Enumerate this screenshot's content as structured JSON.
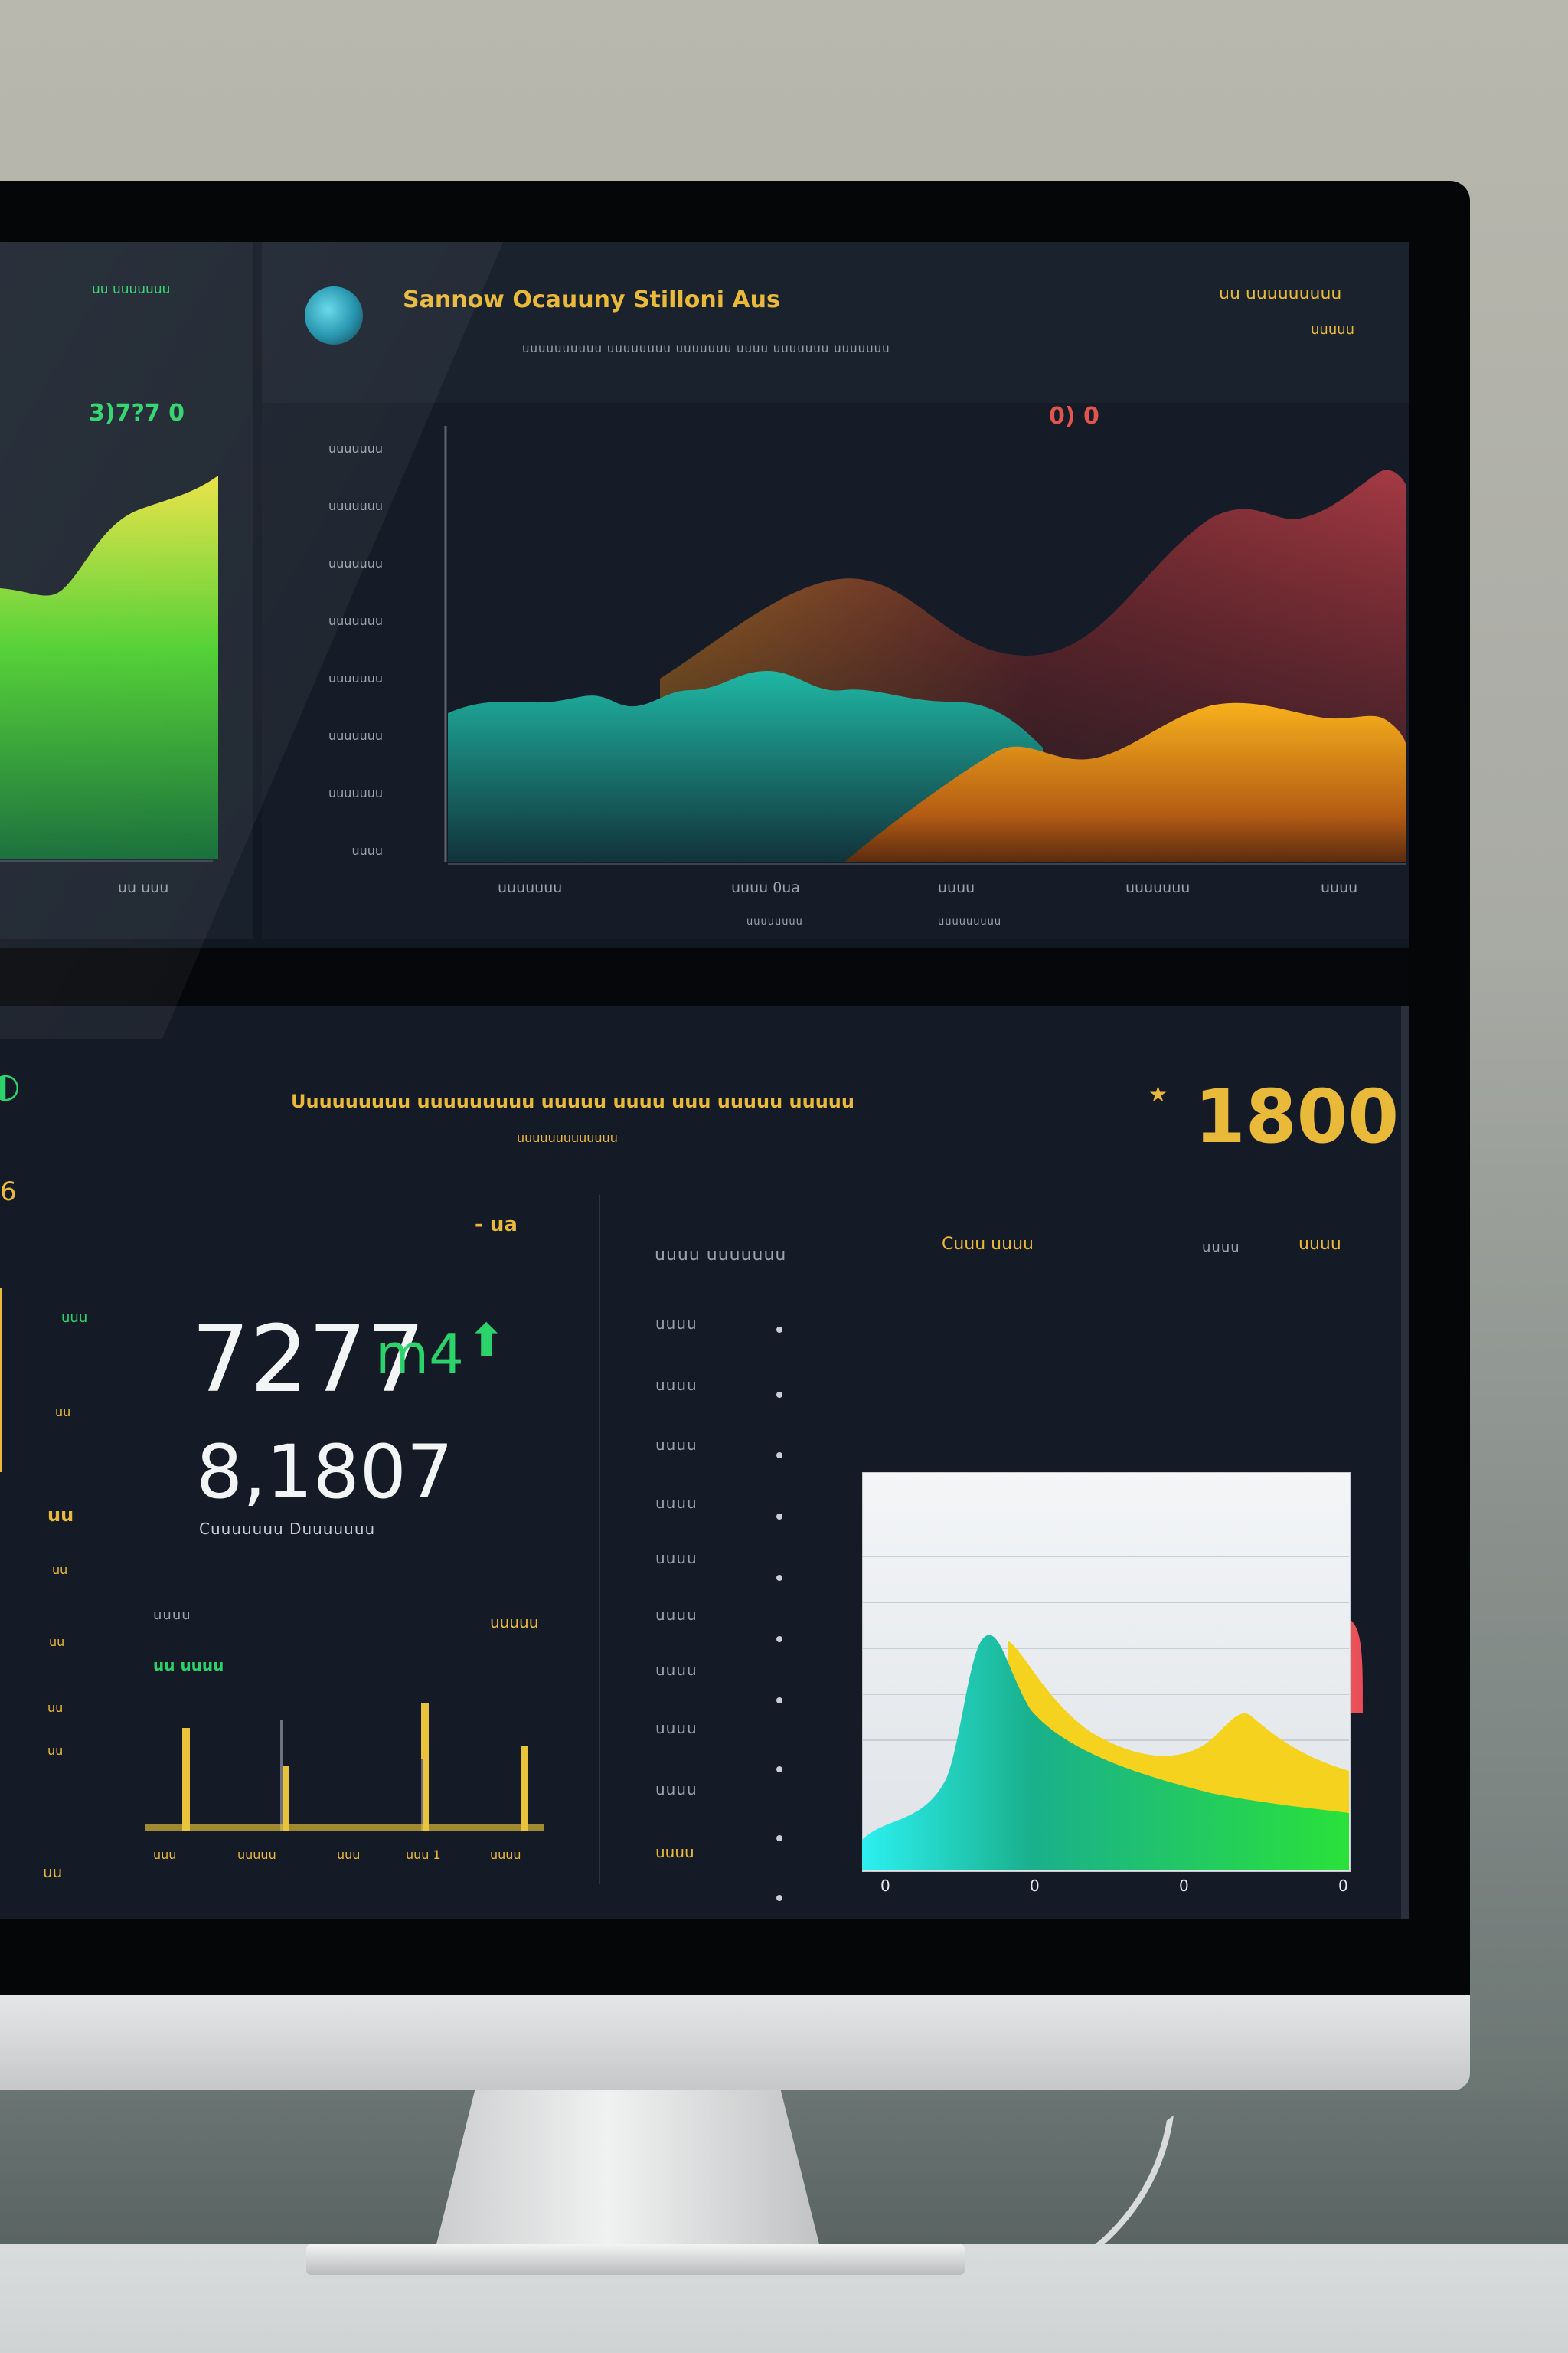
{
  "colors": {
    "screen_bg": "#121822",
    "accent_yellow": "#e9b93a",
    "accent_green": "#2bd36a",
    "accent_red": "#e0564f",
    "accent_teal": "#1fb7a4",
    "accent_orange": "#f19a1f"
  },
  "header": {
    "logo_icon": "circle-logo-icon",
    "title": "Sannow Ocauuny Stilloni Aus",
    "subtitle": "uuuuuuuuuu uuuuuuuu uuuuuuu uuuu uuuuuuu uuuuuuu",
    "right_label": "uu uuuuuuuuu",
    "right_sublabel": "uuuuu"
  },
  "left_panel": {
    "title": "uu uuuuuuu",
    "metric": "3)7?7 0",
    "x_label": "uu uuu"
  },
  "area_chart": {
    "corner_value": "0) 0",
    "x_labels": [
      "uuuuuuu",
      "uuuu 0ua",
      "uuuu",
      "uuuuuuu",
      "uuuu"
    ],
    "x_sublabels": [
      "uuuuuuuu",
      "uuuuuuuuu"
    ]
  },
  "bottom": {
    "headline": "Uuuuuuuuu uuuuuuuuu uuuuu uuuu uuu uuuuu uuuuu",
    "subheadline": "uuuuuuuuuuuuu",
    "big_value": "1800",
    "left_marker": "6",
    "kpi_label_right": "- ua",
    "kpi_primary": "7277",
    "kpi_primary_suffix": "m4",
    "kpi_secondary": "8,1807",
    "kpi_caption": "Cuuuuuuu Duuuuuuu",
    "kpi_small_left": "uuuu",
    "kpi_small_right": "uuuuu",
    "bars_label": "uu uuuu",
    "bars_x_labels": [
      "uuu",
      "uuuuu",
      "uuu",
      "uuu 1",
      "uuuu"
    ],
    "side_ticks": [
      "uuu",
      "uu",
      "uu",
      "uu",
      "uu",
      "uu",
      "uu"
    ],
    "side_bottom": "uu",
    "chart_header_left": "uuuu uuuuuuu",
    "chart_header_center": "Cuuu uuuu",
    "chart_header_right_dim": "uuuu",
    "chart_header_right": "uuuu",
    "y_labels": [
      "uuuu",
      "uuuu",
      "uuuu",
      "uuuu",
      "uuuu",
      "uuuu",
      "uuuu",
      "uuuu",
      "uuuu",
      "uuuu"
    ],
    "x_ticks": [
      "0",
      "0",
      "0",
      "0"
    ]
  },
  "left_y_labels": [
    "uuuuuuu",
    "uuuuuuu",
    "uuuuuuu",
    "uuuuuuu",
    "uuuuuuu",
    "uuuuuuu",
    "uuuuuuu",
    "uuuu"
  ]
}
